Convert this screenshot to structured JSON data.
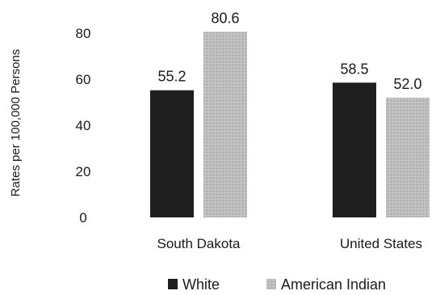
{
  "chart_data": {
    "type": "bar",
    "categories": [
      "South Dakota",
      "United States"
    ],
    "series": [
      {
        "name": "White",
        "values": [
          55.2,
          58.5
        ],
        "color": "#1f1f1f"
      },
      {
        "name": "American Indian",
        "values": [
          80.6,
          52.0
        ],
        "color": "#b8b8b8"
      }
    ],
    "value_labels": [
      [
        "55.2",
        "58.5"
      ],
      [
        "80.6",
        "52.0"
      ]
    ],
    "ylabel": "Rates per 100,000 Persons",
    "yticks": [
      "0",
      "20",
      "40",
      "60",
      "80"
    ],
    "ytick_values": [
      0,
      20,
      40,
      60,
      80
    ],
    "ylim": [
      0,
      80
    ],
    "grid": false,
    "legend_position": "bottom"
  }
}
